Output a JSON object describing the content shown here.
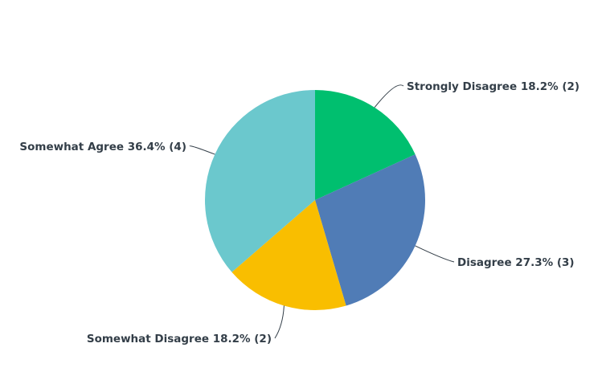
{
  "chart_data": {
    "type": "pie",
    "start": "top",
    "direction": "clockwise",
    "slices": [
      {
        "label": "Strongly Disagree",
        "percent": 18.2,
        "count": 2,
        "color": "#00bf6f",
        "display": "Strongly Disagree 18.2% (2)"
      },
      {
        "label": "Disagree",
        "percent": 27.3,
        "count": 3,
        "color": "#507cb6",
        "display": "Disagree 27.3% (3)"
      },
      {
        "label": "Somewhat Disagree",
        "percent": 18.2,
        "count": 2,
        "color": "#f9be00",
        "display": "Somewhat Disagree 18.2% (2)"
      },
      {
        "label": "Somewhat Agree",
        "percent": 36.4,
        "count": 4,
        "color": "#6bc8cd",
        "display": "Somewhat Agree 36.4% (4)"
      }
    ]
  }
}
